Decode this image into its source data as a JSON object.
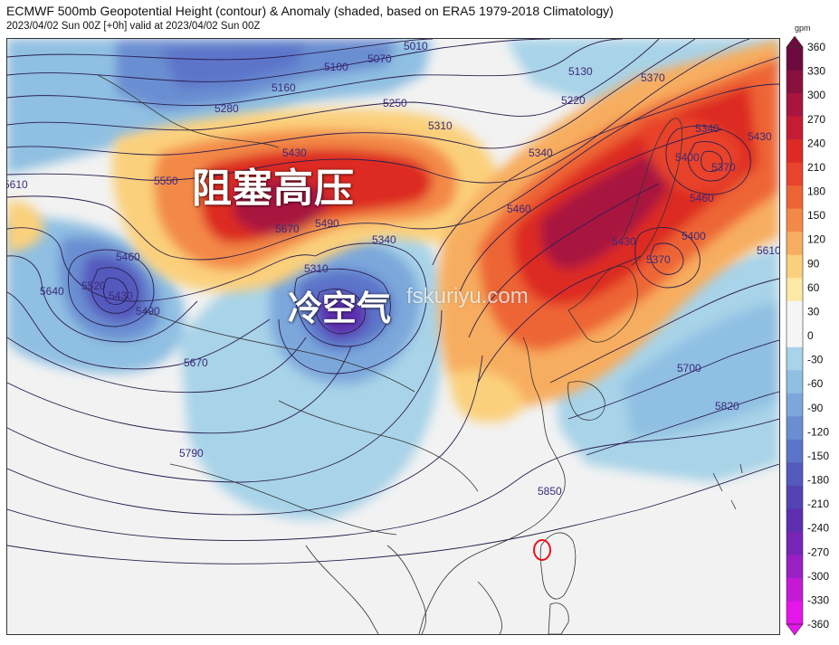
{
  "header": {
    "title": "ECMWF 500mb Geopotential Height (contour) & Anomaly (shaded, based on ERA5 1979-2018 Climatology)",
    "subtitle": "2023/04/02 Sun 00Z [+0h] valid at 2023/04/02 Sun 00Z"
  },
  "annotations": {
    "blocking_high": "阻塞高压",
    "cold_air": "冷空气",
    "watermark": "fskuriyu.com"
  },
  "colorbar": {
    "unit": "gpm",
    "ticks": [
      "360",
      "330",
      "300",
      "270",
      "240",
      "210",
      "180",
      "150",
      "120",
      "90",
      "60",
      "30",
      "0",
      "-30",
      "-60",
      "-90",
      "-120",
      "-150",
      "-180",
      "-210",
      "-240",
      "-270",
      "-300",
      "-330",
      "-360"
    ],
    "colors": [
      "#6d0a3d",
      "#8a1040",
      "#a8153f",
      "#c51c33",
      "#dd2a24",
      "#e8432b",
      "#ee6535",
      "#f38947",
      "#f7ad5e",
      "#fbd07c",
      "#fde9a6",
      "#f5f5f5",
      "#f5f5f5",
      "#a8d3e8",
      "#8fbfe2",
      "#7ca7db",
      "#6a8ed2",
      "#5c74c9",
      "#5459bd",
      "#5343b3",
      "#5d2eaf",
      "#7625b7",
      "#9a1fc5",
      "#c41ad6",
      "#e416ea"
    ]
  },
  "contour_labels": [
    {
      "text": "5010"
    },
    {
      "text": "5070"
    },
    {
      "text": "5100"
    },
    {
      "text": "5160"
    },
    {
      "text": "5280"
    },
    {
      "text": "5250"
    },
    {
      "text": "5310"
    },
    {
      "text": "5430"
    },
    {
      "text": "5550"
    },
    {
      "text": "5670"
    },
    {
      "text": "5490"
    },
    {
      "text": "5340"
    },
    {
      "text": "5310"
    },
    {
      "text": "5460"
    },
    {
      "text": "5520"
    },
    {
      "text": "5430"
    },
    {
      "text": "5490"
    },
    {
      "text": "5640"
    },
    {
      "text": "5670"
    },
    {
      "text": "5790"
    },
    {
      "text": "5850"
    },
    {
      "text": "5130"
    },
    {
      "text": "5220"
    },
    {
      "text": "5370"
    },
    {
      "text": "5340"
    },
    {
      "text": "5400"
    },
    {
      "text": "5370"
    },
    {
      "text": "5430"
    },
    {
      "text": "5460"
    },
    {
      "text": "5430"
    },
    {
      "text": "5400"
    },
    {
      "text": "5370"
    },
    {
      "text": "5610"
    },
    {
      "text": "5700"
    },
    {
      "text": "5820"
    },
    {
      "text": "5340"
    },
    {
      "text": "5460"
    },
    {
      "text": "5610"
    }
  ]
}
